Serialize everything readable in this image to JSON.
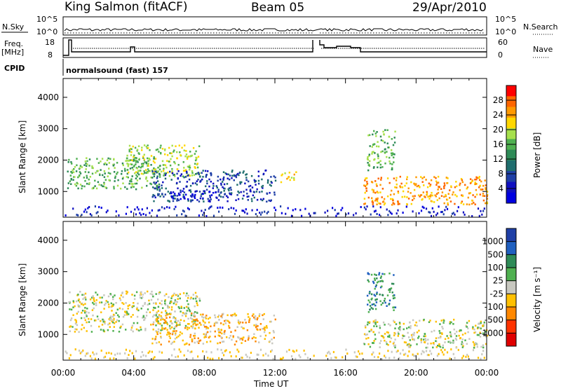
{
  "header": {
    "station": "King Salmon (fitACF)",
    "beam": "Beam 05",
    "date": "29/Apr/2010"
  },
  "strip": {
    "nsky_label": "N.Sky",
    "nsearch_label": "N.Search",
    "nsky_ticks": [
      "10^5",
      "10^0"
    ],
    "nsearch_ticks": [
      "10^5",
      "10^0"
    ],
    "freq_label_1": "Freq.",
    "freq_label_2": "[MHz]",
    "freq_ticks": [
      "18",
      "8"
    ],
    "nave_label": "Nave",
    "nave_ticks": [
      "60",
      "0"
    ],
    "cpid_label": "CPID",
    "cpid_text": "normalsound (fast) 157"
  },
  "chart_data": [
    {
      "type": "heatmap",
      "name": "power-panel",
      "ylabel": "Slant Range [km]",
      "x_ticks": [
        "00:00",
        "04:00",
        "08:00",
        "12:00",
        "16:00",
        "20:00",
        "00:00"
      ],
      "xlim_hours": [
        0,
        24
      ],
      "y_ticks": [
        1000,
        2000,
        3000,
        4000
      ],
      "ylim_km": [
        180,
        4600
      ],
      "colorbar": {
        "label": "Power [dB]",
        "ticks": [
          "28",
          "24",
          "20",
          "16",
          "12",
          "8",
          "4"
        ],
        "colors": [
          "#ff0000",
          "#ff6600",
          "#ff9900",
          "#ffd700",
          "#a6e04d",
          "#4fb050",
          "#2e8b57",
          "#1f6e6e",
          "#1f3fa6",
          "#1010c0",
          "#0000e0"
        ]
      },
      "scatter_regions": [
        {
          "start": 0.2,
          "end": 5.5,
          "low": 1100,
          "high": 2100,
          "level": 5
        },
        {
          "start": 3.5,
          "end": 7.8,
          "low": 1500,
          "high": 2500,
          "level": 4
        },
        {
          "start": 5.0,
          "end": 12.0,
          "low": 700,
          "high": 1700,
          "level": 8
        },
        {
          "start": 6.0,
          "end": 9.0,
          "low": 780,
          "high": 1050,
          "level": 10
        },
        {
          "start": 12.3,
          "end": 13.2,
          "low": 1300,
          "high": 1650,
          "level": 3
        },
        {
          "start": 17.0,
          "end": 24.0,
          "low": 600,
          "high": 1500,
          "level": 2
        },
        {
          "start": 17.2,
          "end": 18.8,
          "low": 1700,
          "high": 3000,
          "level": 5
        }
      ]
    },
    {
      "type": "heatmap",
      "name": "velocity-panel",
      "xlabel": "Time UT",
      "ylabel": "Slant Range [km]",
      "x_ticks": [
        "00:00",
        "04:00",
        "08:00",
        "12:00",
        "16:00",
        "20:00",
        "00:00"
      ],
      "xlim_hours": [
        0,
        24
      ],
      "y_ticks": [
        1000,
        2000,
        3000,
        4000
      ],
      "ylim_km": [
        180,
        4600
      ],
      "colorbar": {
        "label": "Velocity [m s⁻¹]",
        "ticks": [
          "1000",
          "500",
          "100",
          "25",
          "-25",
          "-100",
          "-500",
          "-1000"
        ],
        "colors": [
          "#1f3fa6",
          "#2060c0",
          "#2e8b57",
          "#4fb050",
          "#c8c8c0",
          "#ffc000",
          "#ff8800",
          "#ff3300",
          "#e00000"
        ]
      },
      "scatter_regions": [
        {
          "start": 0.2,
          "end": 7.8,
          "low": 1100,
          "high": 2400,
          "level": 4
        },
        {
          "start": 5.0,
          "end": 12.0,
          "low": 700,
          "high": 1700,
          "level": 5
        },
        {
          "start": 17.0,
          "end": 24.0,
          "low": 600,
          "high": 1500,
          "level": 4
        },
        {
          "start": 17.2,
          "end": 18.8,
          "low": 1700,
          "high": 3000,
          "level": 2
        }
      ]
    }
  ]
}
